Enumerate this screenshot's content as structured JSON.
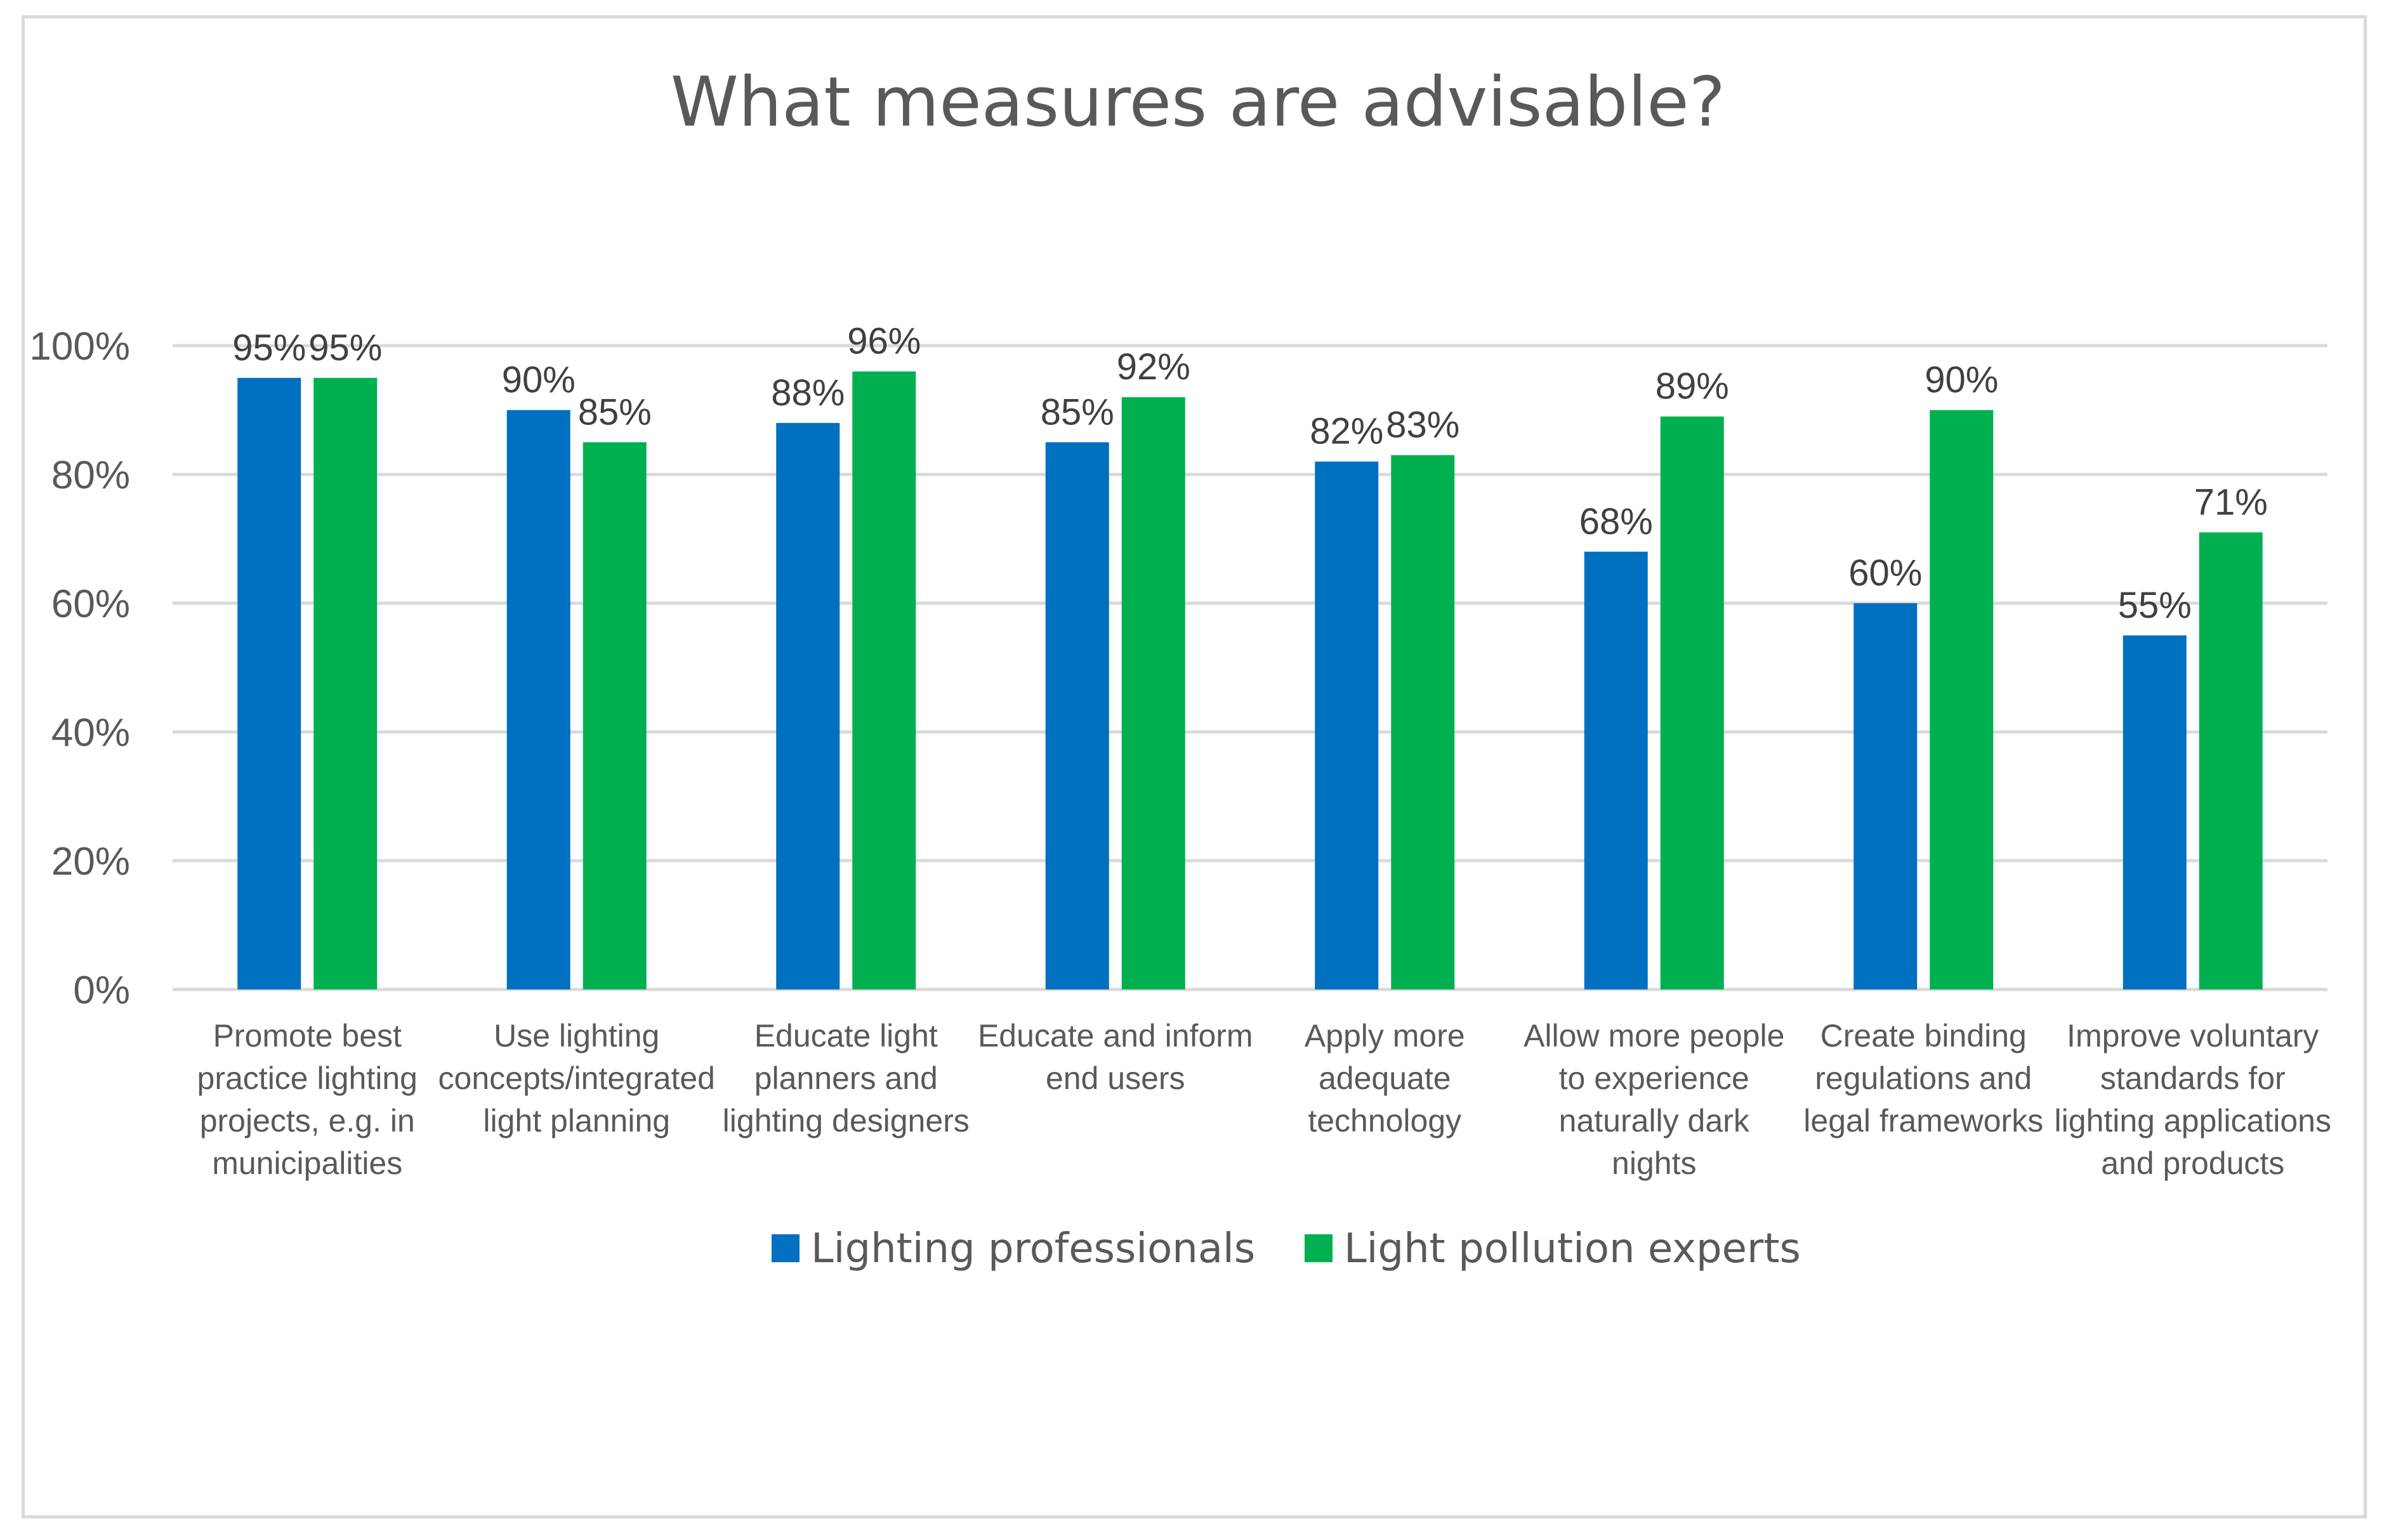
{
  "chart_data": {
    "type": "bar",
    "title": "What measures are advisable?",
    "xlabel": "",
    "ylabel": "",
    "ylim": [
      0,
      100
    ],
    "yticks": [
      0,
      20,
      40,
      60,
      80,
      100
    ],
    "ytick_labels": [
      "0%",
      "20%",
      "40%",
      "60%",
      "80%",
      "100%"
    ],
    "grid": true,
    "legend_position": "bottom",
    "categories": [
      [
        "Promote best",
        "practice lighting",
        "projects, e.g. in",
        "municipalities"
      ],
      [
        "Use lighting",
        "concepts/integrated",
        "light planning"
      ],
      [
        "Educate light",
        "planners and",
        "lighting designers"
      ],
      [
        "Educate and inform",
        "end users"
      ],
      [
        "Apply more",
        "adequate",
        "technology"
      ],
      [
        "Allow more people",
        "to experience",
        "naturally dark",
        "nights"
      ],
      [
        "Create binding",
        "regulations and",
        "legal frameworks"
      ],
      [
        "Improve voluntary",
        "standards for",
        "lighting applications",
        "and products"
      ]
    ],
    "series": [
      {
        "name": "Lighting professionals",
        "color": "#0070c0",
        "values": [
          95,
          90,
          88,
          85,
          82,
          68,
          60,
          55
        ],
        "labels": [
          "95%",
          "90%",
          "88%",
          "85%",
          "82%",
          "68%",
          "60%",
          "55%"
        ]
      },
      {
        "name": "Light pollution experts",
        "color": "#00b050",
        "values": [
          95,
          85,
          96,
          92,
          83,
          89,
          90,
          71
        ],
        "labels": [
          "95%",
          "85%",
          "96%",
          "92%",
          "83%",
          "89%",
          "90%",
          "71%"
        ]
      }
    ]
  }
}
